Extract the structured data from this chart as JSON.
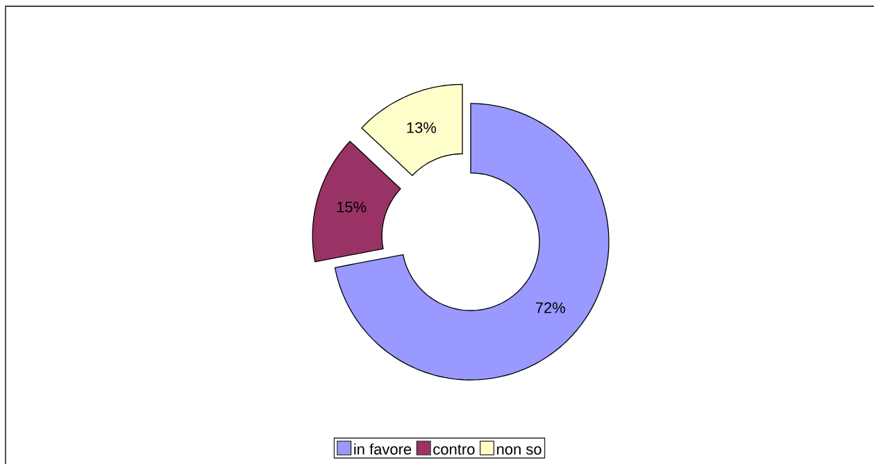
{
  "chart_data": {
    "type": "donut",
    "categories": [
      "in favore",
      "contro",
      "non so"
    ],
    "values": [
      72,
      15,
      13
    ],
    "colors": [
      "#9999ff",
      "#993366",
      "#ffffcc"
    ],
    "value_labels": [
      "72%",
      "15%",
      "13%"
    ],
    "legend": "bottom"
  }
}
